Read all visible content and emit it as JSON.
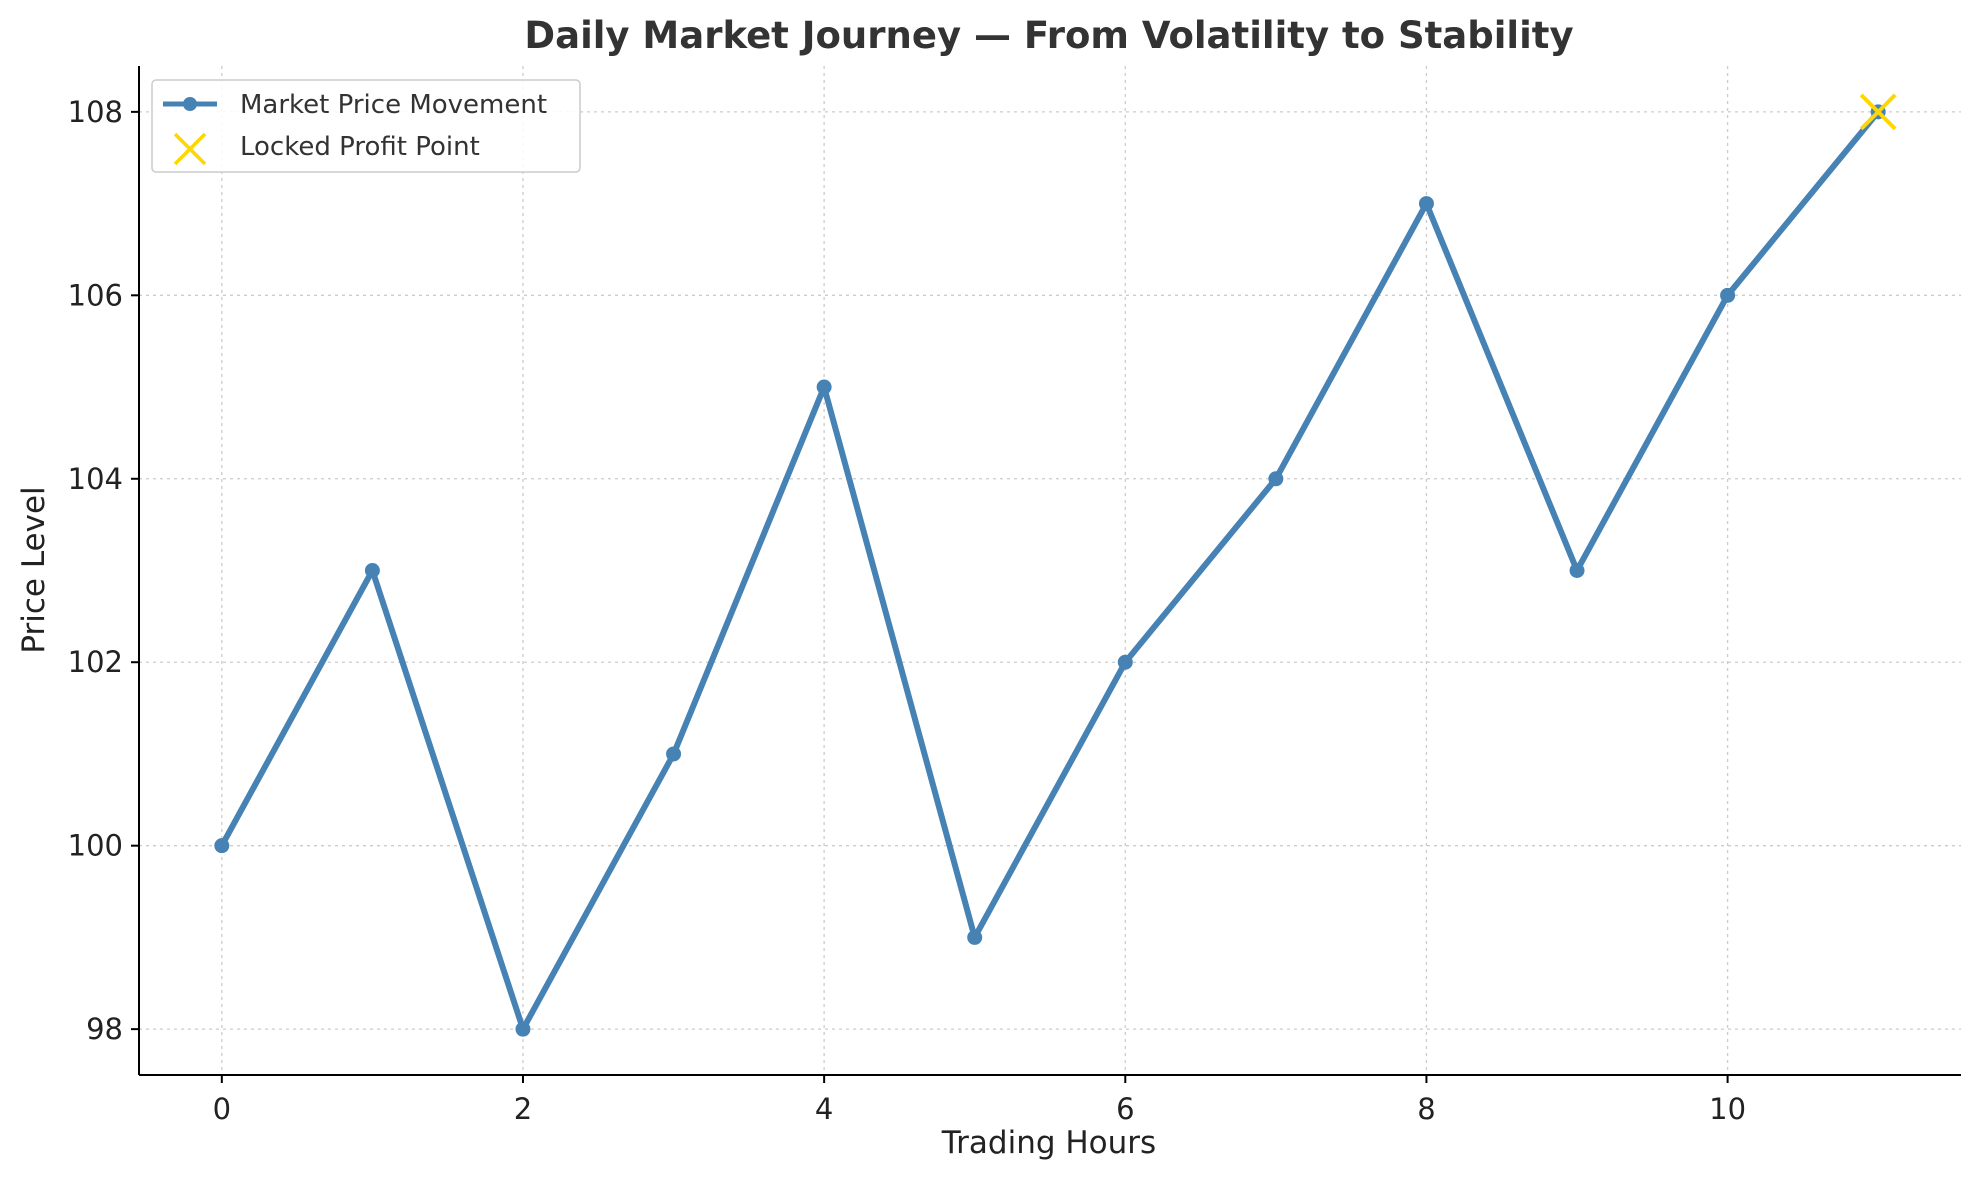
{
  "chart_data": {
    "type": "line",
    "title": "Daily Market Journey — From Volatility to Stability",
    "xlabel": "Trading Hours",
    "ylabel": "Price Level",
    "xlim": [
      -0.55,
      11.55
    ],
    "ylim": [
      97.5,
      108.5
    ],
    "xticks": [
      0,
      2,
      4,
      6,
      8,
      10
    ],
    "yticks": [
      98,
      100,
      102,
      104,
      106,
      108
    ],
    "x_tick_labels": [
      "0",
      "2",
      "4",
      "6",
      "8",
      "10"
    ],
    "y_tick_labels": [
      "98",
      "100",
      "102",
      "104",
      "106",
      "108"
    ],
    "grid": true,
    "legend_position": "top-left",
    "series": [
      {
        "name": "Market Price Movement",
        "type": "line",
        "marker": "circle",
        "color": "#4682b4",
        "x": [
          0,
          1,
          2,
          3,
          4,
          5,
          6,
          7,
          8,
          9,
          10,
          11
        ],
        "y": [
          100,
          103,
          98,
          101,
          105,
          99,
          102,
          104,
          107,
          103,
          106,
          108
        ]
      },
      {
        "name": "Locked Profit Point",
        "type": "scatter",
        "marker": "x",
        "color": "#ffd700",
        "x": [
          11
        ],
        "y": [
          108
        ]
      }
    ]
  }
}
